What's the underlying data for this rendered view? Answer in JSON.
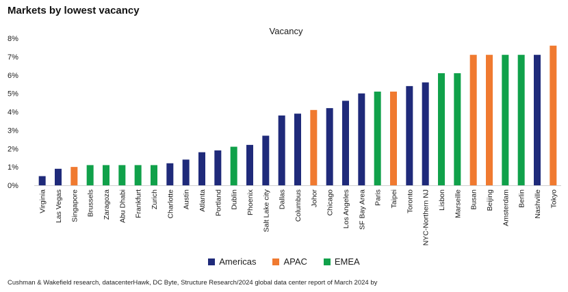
{
  "page": {
    "title": "Markets by lowest vacancy",
    "source": "Cushman & Wakefield research, datacenterHawk, DC Byte, Structure Research/2024 global data center report of March 2024 by"
  },
  "colors": {
    "Americas": "#1f2a7a",
    "APAC": "#f07a30",
    "EMEA": "#10a14a"
  },
  "chart_data": {
    "type": "bar",
    "title": "Vacancy",
    "xlabel": "",
    "ylabel": "",
    "ylim": [
      0,
      8
    ],
    "yticks": [
      "0%",
      "1%",
      "2%",
      "3%",
      "4%",
      "5%",
      "6%",
      "7%",
      "8%"
    ],
    "grid": false,
    "legend": {
      "placement": "bottom-center",
      "entries": [
        "Americas",
        "APAC",
        "EMEA"
      ]
    },
    "unit": "%",
    "categories": [
      "Virginia",
      "Las Vegas",
      "Singapore",
      "Brussels",
      "Zaragoza",
      "Abu Dhabi",
      "Frankfurt",
      "Zurich",
      "Charlotte",
      "Austin",
      "Atlanta",
      "Portland",
      "Dublin",
      "Phoenix",
      "Salt Lake city",
      "Dallas",
      "Columbus",
      "Johor",
      "Chicago",
      "Los Angeles",
      "SF Bay Area",
      "Paris",
      "Taipei",
      "Toronto",
      "NYC-Northern NJ",
      "Lisbon",
      "Marseille",
      "Busan",
      "Beijing",
      "Amsterdam",
      "Berlin",
      "Nashville",
      "Tokyo"
    ],
    "values": [
      0.5,
      0.9,
      1.0,
      1.1,
      1.1,
      1.1,
      1.1,
      1.1,
      1.2,
      1.4,
      1.8,
      1.9,
      2.1,
      2.2,
      2.7,
      3.8,
      3.9,
      4.1,
      4.2,
      4.6,
      5.0,
      5.1,
      5.1,
      5.4,
      5.6,
      6.1,
      6.1,
      7.1,
      7.1,
      7.1,
      7.1,
      7.1,
      7.6
    ],
    "groups": [
      "Americas",
      "Americas",
      "APAC",
      "EMEA",
      "EMEA",
      "EMEA",
      "EMEA",
      "EMEA",
      "Americas",
      "Americas",
      "Americas",
      "Americas",
      "EMEA",
      "Americas",
      "Americas",
      "Americas",
      "Americas",
      "APAC",
      "Americas",
      "Americas",
      "Americas",
      "EMEA",
      "APAC",
      "Americas",
      "Americas",
      "EMEA",
      "EMEA",
      "APAC",
      "APAC",
      "EMEA",
      "EMEA",
      "Americas",
      "APAC"
    ]
  }
}
